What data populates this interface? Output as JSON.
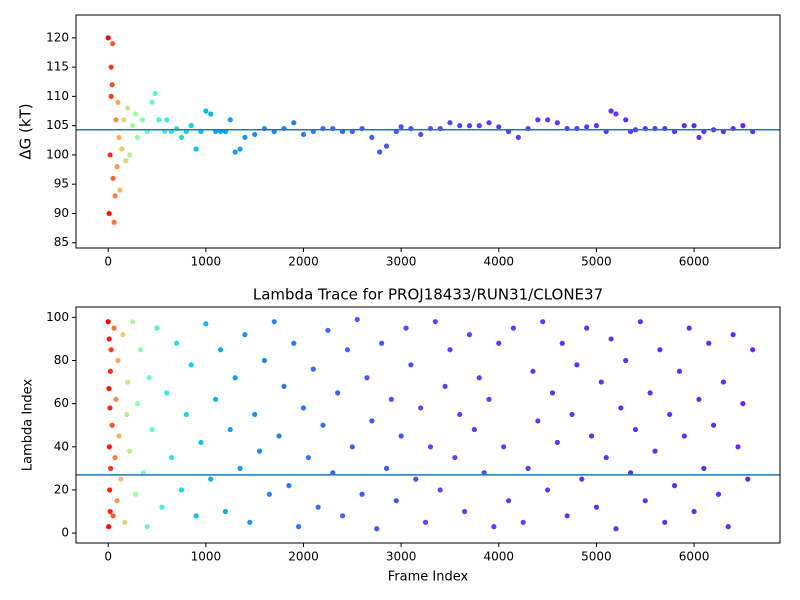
{
  "chart_data": [
    {
      "type": "scatter",
      "y_label": "ΔG (kT)",
      "colormap": "rainbow_r",
      "xlim": [
        -330,
        6880
      ],
      "ylim": [
        84.1,
        123.9
      ],
      "xticks": [
        0,
        1000,
        2000,
        3000,
        4000,
        5000,
        6000
      ],
      "yticks": [
        85,
        90,
        95,
        100,
        105,
        110,
        115,
        120
      ],
      "hline": 104.3,
      "hline_color": "#1f77b4",
      "x": [
        0,
        10,
        20,
        30,
        40,
        50,
        30,
        45,
        60,
        70,
        80,
        90,
        100,
        110,
        120,
        140,
        160,
        180,
        200,
        220,
        250,
        280,
        300,
        350,
        400,
        450,
        480,
        520,
        580,
        600,
        650,
        700,
        750,
        800,
        850,
        900,
        950,
        1000,
        1050,
        1100,
        1150,
        1200,
        1250,
        1300,
        1350,
        1400,
        1500,
        1600,
        1700,
        1800,
        1900,
        2000,
        2100,
        2200,
        2300,
        2400,
        2500,
        2600,
        2700,
        2780,
        2850,
        2950,
        3000,
        3100,
        3200,
        3300,
        3400,
        3500,
        3600,
        3700,
        3800,
        3900,
        4000,
        4100,
        4200,
        4300,
        4400,
        4500,
        4600,
        4700,
        4800,
        4900,
        5000,
        5100,
        5150,
        5200,
        5300,
        5350,
        5400,
        5500,
        5600,
        5700,
        5800,
        5900,
        6000,
        6050,
        6100,
        6200,
        6300,
        6400,
        6500,
        6600
      ],
      "values": [
        120,
        90,
        100,
        110,
        112,
        96,
        115,
        119,
        88.5,
        93,
        106,
        98,
        109,
        103,
        94,
        101,
        106,
        99,
        108,
        100,
        105,
        107,
        103,
        106,
        104,
        109,
        110.5,
        106,
        104,
        106,
        104,
        104.5,
        103,
        104,
        105,
        101,
        104,
        107.5,
        107,
        104,
        104,
        104,
        106,
        100.5,
        101,
        103,
        103.5,
        104.5,
        104,
        104.5,
        105.5,
        103.5,
        104,
        104.5,
        104.5,
        104,
        104,
        104.5,
        103,
        100.5,
        101.5,
        104,
        104.8,
        104.5,
        103.5,
        104.5,
        104.5,
        105.5,
        105,
        105,
        105,
        105.5,
        104.8,
        104,
        103,
        104.5,
        106,
        106,
        105.5,
        104.5,
        104.5,
        104.8,
        105,
        104,
        107.5,
        107,
        106,
        104,
        104.3,
        104.5,
        104.5,
        104.5,
        104,
        105,
        105,
        103,
        104,
        104.3,
        104,
        104.5,
        105,
        104
      ]
    },
    {
      "type": "scatter",
      "title": "Lambda Trace for PROJ18433/RUN31/CLONE37",
      "x_label": "Frame Index",
      "y_label": "Lambda Index",
      "colormap": "rainbow_r",
      "xlim": [
        -330,
        6880
      ],
      "ylim": [
        -4.6,
        104.8
      ],
      "xticks": [
        0,
        1000,
        2000,
        3000,
        4000,
        5000,
        6000
      ],
      "yticks": [
        0,
        20,
        40,
        60,
        80,
        100
      ],
      "hline": 27,
      "hline_color": "#1f77b4",
      "x": [
        0,
        5,
        8,
        10,
        12,
        15,
        18,
        20,
        22,
        25,
        30,
        40,
        50,
        60,
        70,
        80,
        90,
        100,
        110,
        130,
        150,
        170,
        190,
        200,
        220,
        250,
        280,
        300,
        330,
        360,
        400,
        420,
        450,
        500,
        550,
        600,
        650,
        700,
        750,
        800,
        850,
        900,
        950,
        1000,
        1050,
        1100,
        1150,
        1200,
        1250,
        1300,
        1350,
        1400,
        1450,
        1500,
        1550,
        1600,
        1650,
        1700,
        1750,
        1800,
        1850,
        1900,
        1950,
        2000,
        2050,
        2100,
        2150,
        2200,
        2250,
        2300,
        2350,
        2400,
        2450,
        2500,
        2550,
        2600,
        2650,
        2700,
        2750,
        2800,
        2850,
        2900,
        2950,
        3000,
        3050,
        3100,
        3150,
        3200,
        3250,
        3300,
        3350,
        3400,
        3450,
        3500,
        3550,
        3600,
        3650,
        3700,
        3750,
        3800,
        3850,
        3900,
        3950,
        4000,
        4050,
        4100,
        4150,
        4250,
        4300,
        4350,
        4400,
        4450,
        4500,
        4550,
        4600,
        4650,
        4700,
        4750,
        4800,
        4850,
        4900,
        4950,
        5000,
        5050,
        5100,
        5150,
        5200,
        5250,
        5300,
        5350,
        5400,
        5450,
        5500,
        5550,
        5600,
        5650,
        5700,
        5750,
        5800,
        5850,
        5900,
        5950,
        6000,
        6050,
        6100,
        6150,
        6200,
        6250,
        6300,
        6350,
        6400,
        6450,
        6500,
        6550,
        6600
      ],
      "values": [
        98,
        3,
        67,
        90,
        40,
        20,
        58,
        10,
        75,
        30,
        85,
        50,
        8,
        95,
        35,
        62,
        15,
        80,
        45,
        25,
        92,
        5,
        55,
        70,
        38,
        98,
        18,
        60,
        85,
        28,
        3,
        72,
        48,
        95,
        12,
        65,
        35,
        88,
        20,
        55,
        78,
        8,
        42,
        97,
        25,
        62,
        85,
        10,
        48,
        72,
        30,
        92,
        5,
        55,
        38,
        80,
        18,
        98,
        45,
        68,
        22,
        88,
        3,
        58,
        35,
        76,
        12,
        50,
        94,
        28,
        65,
        8,
        85,
        40,
        99,
        18,
        72,
        52,
        2,
        88,
        30,
        62,
        15,
        45,
        95,
        78,
        25,
        58,
        5,
        40,
        98,
        20,
        68,
        85,
        35,
        55,
        10,
        92,
        48,
        72,
        28,
        62,
        3,
        88,
        40,
        15,
        95,
        5,
        30,
        75,
        52,
        98,
        20,
        65,
        42,
        88,
        8,
        55,
        78,
        25,
        95,
        45,
        12,
        70,
        35,
        90,
        2,
        58,
        80,
        28,
        48,
        98,
        15,
        65,
        38,
        85,
        5,
        55,
        22,
        75,
        45,
        95,
        10,
        62,
        30,
        88,
        50,
        18,
        70,
        3,
        92,
        40,
        60,
        25,
        85
      ]
    }
  ]
}
